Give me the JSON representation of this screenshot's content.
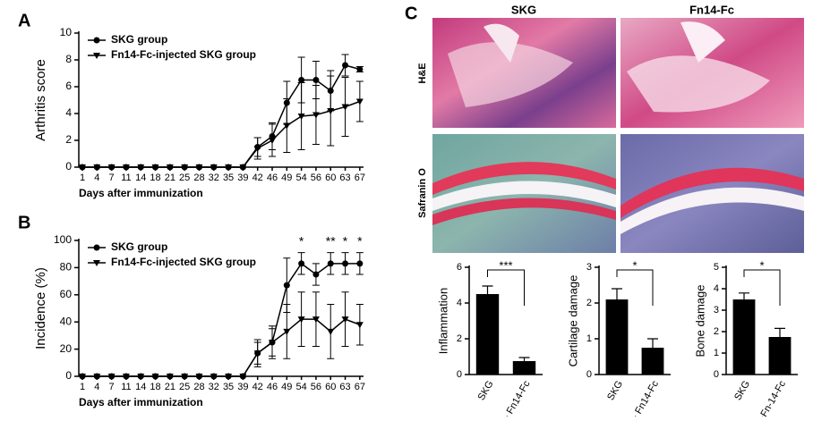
{
  "panels": {
    "a": "A",
    "b": "B",
    "c": "C"
  },
  "histology": {
    "columns": [
      "SKG",
      "Fn14-Fc"
    ],
    "rows": [
      "H&E",
      "Safranin O"
    ]
  },
  "chart_data": [
    {
      "type": "line",
      "ylabel": "Arthritis score",
      "xlabel": "Days after immunization",
      "categories": [
        "1",
        "4",
        "7",
        "11",
        "14",
        "18",
        "21",
        "25",
        "28",
        "32",
        "35",
        "39",
        "42",
        "46",
        "49",
        "54",
        "56",
        "60",
        "63",
        "67"
      ],
      "ylim": [
        0,
        10
      ],
      "yticks": [
        0,
        2,
        4,
        6,
        8,
        10
      ],
      "legend": "top-left",
      "series": [
        {
          "name": "SKG group",
          "color": "#000000",
          "marker": "circle",
          "values": [
            0,
            0,
            0,
            0,
            0,
            0,
            0,
            0,
            0,
            0,
            0,
            0,
            1.5,
            2.3,
            4.8,
            6.5,
            6.5,
            5.7,
            7.6,
            7.3
          ],
          "errors": [
            0,
            0,
            0,
            0,
            0,
            0,
            0,
            0,
            0,
            0,
            0,
            0,
            0.7,
            1,
            1.6,
            1.7,
            1.4,
            1.5,
            0.8,
            0.2
          ]
        },
        {
          "name": "Fn14-Fc-injected SKG group",
          "color": "#000000",
          "marker": "triangle-down",
          "values": [
            0,
            0,
            0,
            0,
            0,
            0,
            0,
            0,
            0,
            0,
            0,
            0,
            1.4,
            2.0,
            3.1,
            3.8,
            3.9,
            4.2,
            4.5,
            4.9
          ],
          "errors": [
            0,
            0,
            0,
            0,
            0,
            0,
            0,
            0,
            0,
            0,
            0,
            0,
            0.8,
            1.2,
            2,
            2.5,
            2.2,
            2.6,
            2.2,
            1.5
          ]
        }
      ]
    },
    {
      "type": "line",
      "ylabel": "Incidence (%)",
      "xlabel": "Days after immunization",
      "categories": [
        "1",
        "4",
        "7",
        "11",
        "14",
        "18",
        "21",
        "25",
        "28",
        "32",
        "35",
        "39",
        "42",
        "46",
        "49",
        "54",
        "56",
        "60",
        "63",
        "67"
      ],
      "ylim": [
        0,
        100
      ],
      "yticks": [
        0,
        20,
        40,
        60,
        80,
        100
      ],
      "legend": "top-left",
      "annotations": [
        {
          "text": "*",
          "x": "54"
        },
        {
          "text": "**",
          "x": "60"
        },
        {
          "text": "*",
          "x": "63"
        },
        {
          "text": "*",
          "x": "67"
        }
      ],
      "series": [
        {
          "name": "SKG group",
          "color": "#000000",
          "marker": "circle",
          "values": [
            0,
            0,
            0,
            0,
            0,
            0,
            0,
            0,
            0,
            0,
            0,
            0,
            17,
            25,
            67,
            83,
            75,
            83,
            83,
            83
          ],
          "errors": [
            0,
            0,
            0,
            0,
            0,
            0,
            0,
            0,
            0,
            0,
            0,
            0,
            8,
            10,
            20,
            8,
            8,
            8,
            8,
            8
          ]
        },
        {
          "name": "Fn14-Fc-injected SKG group",
          "color": "#000000",
          "marker": "triangle-down",
          "values": [
            0,
            0,
            0,
            0,
            0,
            0,
            0,
            0,
            0,
            0,
            0,
            0,
            17,
            25,
            33,
            42,
            42,
            33,
            42,
            38
          ],
          "errors": [
            0,
            0,
            0,
            0,
            0,
            0,
            0,
            0,
            0,
            0,
            0,
            0,
            10,
            12,
            20,
            20,
            20,
            20,
            20,
            15
          ]
        }
      ]
    },
    {
      "type": "bar",
      "ylabel": "Inflammation",
      "categories": [
        "SKG",
        "+ Fn14-Fc"
      ],
      "values": [
        4.5,
        0.75
      ],
      "errors": [
        0.45,
        0.2
      ],
      "color": "#000000",
      "ylim": [
        0,
        6
      ],
      "yticks": [
        0,
        2,
        4,
        6
      ],
      "significance": "***"
    },
    {
      "type": "bar",
      "ylabel": "Cartilage damage",
      "categories": [
        "SKG",
        "+ Fn14-Fc"
      ],
      "values": [
        2.1,
        0.75
      ],
      "errors": [
        0.3,
        0.25
      ],
      "color": "#000000",
      "ylim": [
        0,
        3
      ],
      "yticks": [
        0,
        1,
        2,
        3
      ],
      "significance": "*"
    },
    {
      "type": "bar",
      "ylabel": "Bone damage",
      "categories": [
        "SKG",
        "+Fn-14-Fc"
      ],
      "values": [
        3.5,
        1.75
      ],
      "errors": [
        0.3,
        0.4
      ],
      "color": "#000000",
      "ylim": [
        0,
        5
      ],
      "yticks": [
        0,
        1,
        2,
        3,
        4,
        5
      ],
      "significance": "*"
    }
  ]
}
